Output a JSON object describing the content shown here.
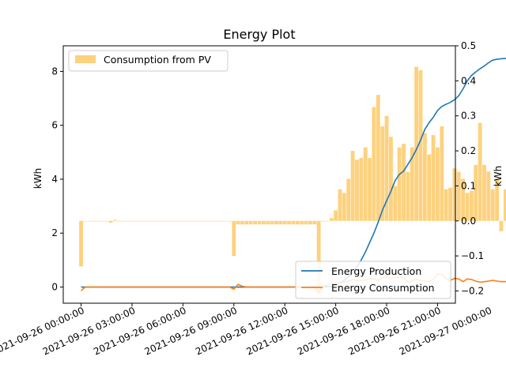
{
  "chart_data": {
    "type": "bar+line",
    "title": "Energy Plot",
    "ylabel_left": "kWh",
    "ylabel_right": "kWh",
    "ylim_left": [
      -0.6,
      8.95
    ],
    "ylim_right": [
      -0.235,
      0.5
    ],
    "yticks_left": [
      0,
      2,
      4,
      6,
      8
    ],
    "yticks_right": [
      -0.2,
      -0.1,
      0.0,
      0.1,
      0.2,
      0.3,
      0.4,
      0.5
    ],
    "ytick_labels_right": [
      "−0.2",
      "−0.1",
      "0.0",
      "0.1",
      "0.2",
      "0.3",
      "0.4",
      "0.5"
    ],
    "xlim_hours": [
      -1.05,
      22.05
    ],
    "xticks": [
      {
        "hour": 0,
        "label": "2021-09-26 00:00:00"
      },
      {
        "hour": 3,
        "label": "2021-09-26 03:00:00"
      },
      {
        "hour": 6,
        "label": "2021-09-26 06:00:00"
      },
      {
        "hour": 9,
        "label": "2021-09-26 09:00:00"
      },
      {
        "hour": 12,
        "label": "2021-09-26 12:00:00"
      },
      {
        "hour": 15,
        "label": "2021-09-26 15:00:00"
      },
      {
        "hour": 18,
        "label": "2021-09-26 18:00:00"
      },
      {
        "hour": 21,
        "label": "2021-09-26 21:00:00"
      },
      {
        "hour": 24,
        "label": "2021-09-27 00:00:00"
      }
    ],
    "legend_left": {
      "placement": "top-left",
      "entries": [
        {
          "name": "Consumption from PV",
          "color": "#fdd17e"
        }
      ]
    },
    "legend_right": {
      "placement": "bottom-right",
      "entries": [
        {
          "name": "Energy Production",
          "color": "#1f77b4"
        },
        {
          "name": "Energy Consumption",
          "color": "#ff7f0e"
        }
      ]
    },
    "bar_series": {
      "name": "Consumption from PV",
      "axis": "right",
      "color": "#fdd17e",
      "hour_start": 0,
      "hour_step": 0.25,
      "values": [
        -0.13,
        0,
        0,
        0,
        0,
        0,
        0,
        -0.005,
        0.003,
        0,
        0,
        0,
        0,
        0,
        0,
        0,
        0,
        0,
        0,
        0,
        0,
        0,
        0,
        0,
        0,
        0,
        0,
        0,
        0,
        0,
        0,
        0,
        0,
        0,
        0,
        0,
        -0.1,
        -0.01,
        -0.01,
        -0.01,
        -0.01,
        -0.01,
        -0.01,
        -0.01,
        -0.01,
        -0.01,
        -0.01,
        -0.01,
        -0.01,
        -0.01,
        -0.01,
        -0.01,
        -0.01,
        -0.01,
        -0.01,
        -0.01,
        -0.21,
        0,
        0,
        0.008,
        0.03,
        0.09,
        0.08,
        0.12,
        0.2,
        0.175,
        0.18,
        0.21,
        0.18,
        0.325,
        0.36,
        0.27,
        0.3,
        0.24,
        0.1,
        0.21,
        0.22,
        0.14,
        0.21,
        0.44,
        0.43,
        0.25,
        0.19,
        0.245,
        0.21,
        0.27,
        0.09,
        0.095,
        0.15,
        0.14,
        0.12,
        0.08,
        0.086,
        0.16,
        0.28,
        0.16,
        0.141,
        0.09,
        0.12,
        -0.03,
        0.09,
        -0.005,
        -0.006,
        -0.006,
        -0.005,
        -0.006,
        -0.002,
        0,
        0,
        0,
        0,
        -0.007,
        -0.005,
        -0.006,
        0.003,
        0,
        0.137
      ]
    },
    "line_series": [
      {
        "name": "Energy Production",
        "axis": "left",
        "color": "#1f77b4",
        "hour_step": 0.25,
        "hour_start": 0,
        "values": [
          0,
          0,
          0,
          0,
          0,
          0,
          0,
          0,
          0,
          0,
          0,
          0,
          0,
          0,
          0,
          0,
          0,
          0,
          0,
          0,
          0,
          0,
          0,
          0,
          0,
          0,
          0,
          0,
          0,
          0,
          0,
          0,
          0,
          0,
          0,
          0,
          0,
          0,
          0,
          0,
          0,
          0,
          0,
          0,
          0,
          0,
          0,
          0,
          0,
          0,
          0,
          0,
          0,
          0,
          0,
          0,
          0,
          0,
          0.01,
          0.03,
          0.08,
          0.15,
          0.25,
          0.38,
          0.55,
          0.75,
          1.0,
          1.3,
          1.65,
          2.0,
          2.4,
          2.85,
          3.2,
          3.55,
          3.95,
          4.18,
          4.3,
          4.55,
          4.8,
          5.1,
          5.45,
          5.85,
          6.1,
          6.3,
          6.55,
          6.7,
          6.78,
          6.85,
          6.95,
          7.1,
          7.35,
          7.65,
          7.85,
          7.98,
          8.1,
          8.2,
          8.32,
          8.42,
          8.45,
          8.47,
          8.48,
          8.49,
          8.5,
          8.5,
          8.5,
          8.5,
          8.5,
          8.5,
          8.5,
          8.5,
          8.5,
          8.5,
          8.5,
          8.5,
          8.5,
          8.5,
          8.5,
          8.5,
          8.5,
          8.5,
          8.5,
          8.5,
          8.5,
          8.5,
          8.5,
          8.5,
          8.5,
          8.5,
          8.5,
          8.5,
          8.5,
          8.5,
          8.5,
          8.5,
          8.5,
          8.5
        ]
      },
      {
        "name": "Energy Consumption",
        "axis": "left",
        "color": "#ff7f0e",
        "hour_step": 0.25,
        "hour_start": 0,
        "values": [
          -0.14,
          0,
          0,
          0,
          0,
          0,
          0,
          0,
          0,
          0,
          0,
          0,
          0,
          0,
          0,
          0,
          0,
          0,
          0,
          0,
          0,
          0,
          0,
          0,
          0,
          0,
          0,
          0,
          0,
          0,
          0,
          0,
          0,
          0,
          0,
          0,
          -0.08,
          0.1,
          0.03,
          0,
          0,
          0,
          0,
          0,
          0,
          0,
          0,
          0,
          0,
          0,
          0,
          0,
          0,
          0,
          0,
          0,
          -0.2,
          0.02,
          0.08,
          0.13,
          0.15,
          0.14,
          0.18,
          0.22,
          0.28,
          0.25,
          0.25,
          0.27,
          0.32,
          0.3,
          0.25,
          0.35,
          0.4,
          0.32,
          0.35,
          0.37,
          0.35,
          0.18,
          0.24,
          0.28,
          0.25,
          0.22,
          0.2,
          0.3,
          0.48,
          0.47,
          0.3,
          0.25,
          0.32,
          0.3,
          0.2,
          0.3,
          0.28,
          0.22,
          0.18,
          0.2,
          0.22,
          0.25,
          0.22,
          0.2,
          0.2,
          0.22,
          0.2,
          0.2,
          0.15,
          0.13,
          0.1,
          0.12,
          0.13
        ]
      }
    ]
  }
}
